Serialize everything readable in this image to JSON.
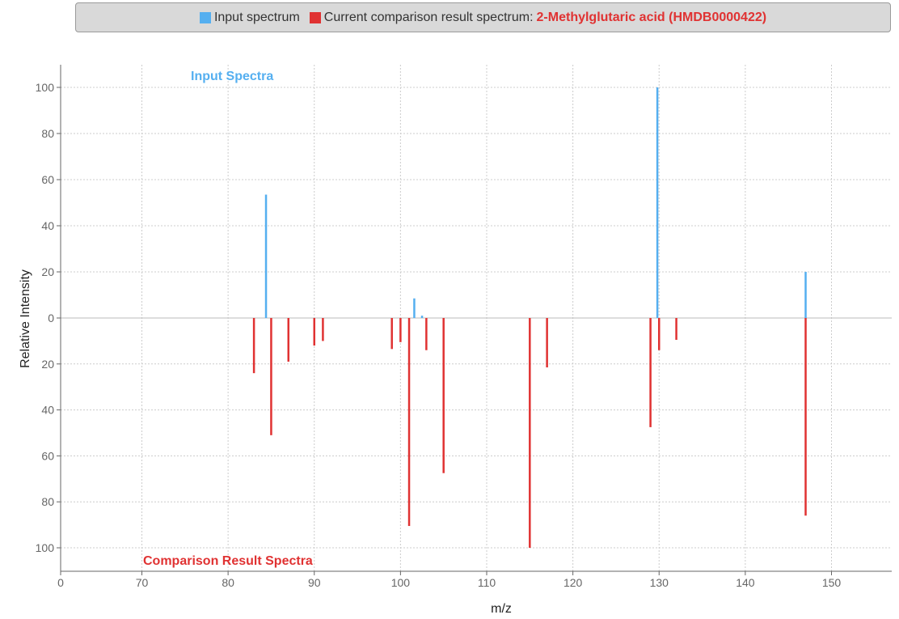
{
  "legend": {
    "input_label": "Input spectrum",
    "comparison_label": "Current comparison result spectrum:",
    "compound_name": "2-Methylglutaric acid (HMDB0000422)"
  },
  "colors": {
    "input": "#55aff0",
    "comparison": "#e03232",
    "grid": "#cccccc",
    "axis": "#666666"
  },
  "chart_data": {
    "type": "bar",
    "subtype": "mirror-spectrum",
    "xlabel": "m/z",
    "ylabel": "Relative Intensity",
    "top_label": "Input Spectra",
    "bottom_label": "Comparison Result Spectra",
    "xlim": [
      0,
      157
    ],
    "ylim": [
      -100,
      100
    ],
    "x_ticks": [
      0,
      70,
      80,
      90,
      100,
      110,
      120,
      130,
      140,
      150
    ],
    "y_ticks": [
      100,
      80,
      60,
      40,
      20,
      0,
      20,
      40,
      60,
      80,
      100
    ],
    "grid": true,
    "series": [
      {
        "name": "Input spectrum",
        "x": [
          84.4,
          101.6,
          102.5,
          129.8,
          147.0
        ],
        "values": [
          53.5,
          8.5,
          1.0,
          100,
          20
        ]
      },
      {
        "name": "Current comparison result spectrum",
        "x": [
          83,
          85,
          87,
          90,
          91,
          99,
          100,
          101,
          103,
          105,
          115,
          117,
          129,
          130,
          132,
          147
        ],
        "values": [
          24,
          51,
          19,
          12,
          10,
          13.5,
          10.5,
          90.5,
          14,
          67.5,
          100,
          21.5,
          47.5,
          14,
          9.5,
          86
        ]
      }
    ]
  }
}
